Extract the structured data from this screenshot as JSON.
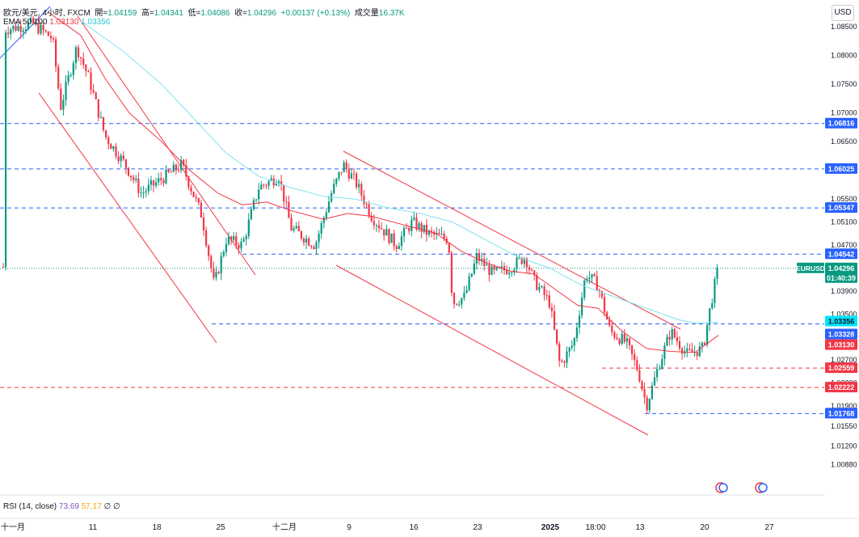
{
  "header": {
    "symbol": "欧元/美元",
    "interval": "4小时",
    "exchange": "FXCM",
    "open_label": "開=",
    "open": "1.04159",
    "high_label": "高=",
    "high": "1.04341",
    "low_label": "低=",
    "low": "1.04086",
    "close_label": "收=",
    "close": "1.04296",
    "change": "+0.00137 (+0.13%)",
    "volume_label": "成交量",
    "volume": "16.37K"
  },
  "indicator": {
    "name": "EMA 50 100",
    "ema50": "1.03130",
    "ema100": "1.03356"
  },
  "rsi": {
    "name": "RSI (14, close)",
    "v1": "73.69",
    "v2": "57.17",
    "v3": "∅",
    "v4": "∅"
  },
  "currency_button": "USD",
  "colors": {
    "up": "#089981",
    "down": "#f23645",
    "ema50": "#f23645",
    "ema100": "#7fe3ee",
    "hline_blue": "#2962ff",
    "hline_red": "#f23645",
    "channel": "#f23645"
  },
  "chart_data": {
    "type": "candlestick",
    "y_axis_ticks": [
      "1.08500",
      "1.08000",
      "1.07500",
      "1.07000",
      "1.06500",
      "1.06000",
      "1.05500",
      "1.05100",
      "1.04700",
      "1.04300",
      "1.03900",
      "1.03500",
      "1.03100",
      "1.02700",
      "1.02300",
      "1.01900",
      "1.01550",
      "1.01200",
      "1.00880"
    ],
    "x_axis_ticks": [
      "十一月",
      "11",
      "18",
      "25",
      "十二月",
      "9",
      "16",
      "23",
      "2025",
      "18:00",
      "13",
      "20",
      "27"
    ],
    "price_labels": [
      {
        "text": "1.06816",
        "kind": "blue"
      },
      {
        "text": "1.06025",
        "kind": "blue"
      },
      {
        "text": "1.05347",
        "kind": "blue"
      },
      {
        "text": "1.04542",
        "kind": "blue"
      },
      {
        "text": "EURUSD",
        "kind": "sym"
      },
      {
        "text": "1.04296",
        "kind": "last"
      },
      {
        "text": "01:40:39",
        "kind": "countdown"
      },
      {
        "text": "1.03356",
        "kind": "ema100"
      },
      {
        "text": "1.03328",
        "kind": "blue"
      },
      {
        "text": "1.03130",
        "kind": "ema50"
      },
      {
        "text": "1.02559",
        "kind": "red"
      },
      {
        "text": "1.02222",
        "kind": "red"
      },
      {
        "text": "1.01768",
        "kind": "blue"
      }
    ],
    "horizontal_levels": [
      {
        "price": 1.06816,
        "style": "blue"
      },
      {
        "price": 1.06025,
        "style": "blue"
      },
      {
        "price": 1.05347,
        "style": "blue"
      },
      {
        "price": 1.04542,
        "style": "blue"
      },
      {
        "price": 1.03328,
        "style": "blue"
      },
      {
        "price": 1.02559,
        "style": "red"
      },
      {
        "price": 1.02222,
        "style": "red"
      },
      {
        "price": 1.01768,
        "style": "blue"
      }
    ],
    "last_price": 1.04296,
    "ema50_last": 1.0313,
    "ema100_last": 1.03356
  }
}
